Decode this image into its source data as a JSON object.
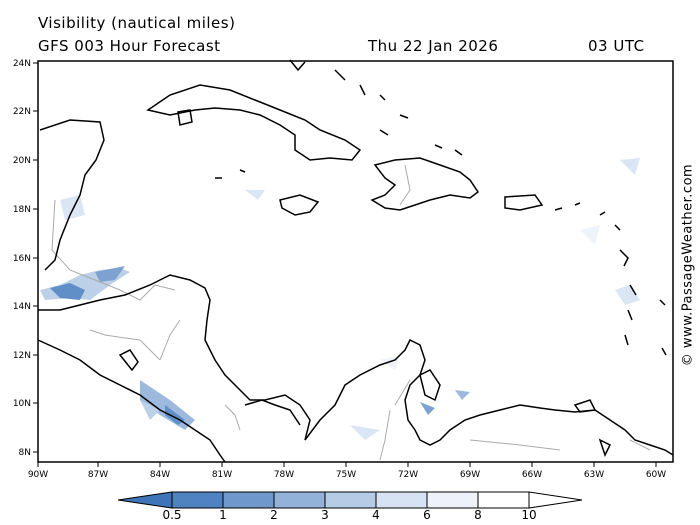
{
  "header": {
    "title": "Visibility (nautical miles)",
    "model": "GFS 003 Hour Forecast",
    "date": "Thu 22 Jan 2026",
    "time": "03 UTC"
  },
  "copyright": "© www.PassageWeather.com",
  "axes": {
    "x_ticks": [
      "90W",
      "87W",
      "84W",
      "81W",
      "78W",
      "75W",
      "72W",
      "69W",
      "66W",
      "63W",
      "60W"
    ],
    "y_ticks": [
      "24N",
      "22N",
      "20N",
      "18N",
      "16N",
      "14N",
      "12N",
      "10N",
      "8N"
    ]
  },
  "colorbar": {
    "labels": [
      "0.5",
      "1",
      "2",
      "3",
      "4",
      "6",
      "8",
      "10"
    ],
    "colors": [
      "#3f74b6",
      "#4f82c0",
      "#6f98cd",
      "#93b2da",
      "#b5cbe6",
      "#d6e3f2",
      "#eef3fa"
    ]
  },
  "colors": {
    "land_outline": "#000000",
    "border": "#aaaaaa",
    "visibility_low": "#3f74b6"
  }
}
